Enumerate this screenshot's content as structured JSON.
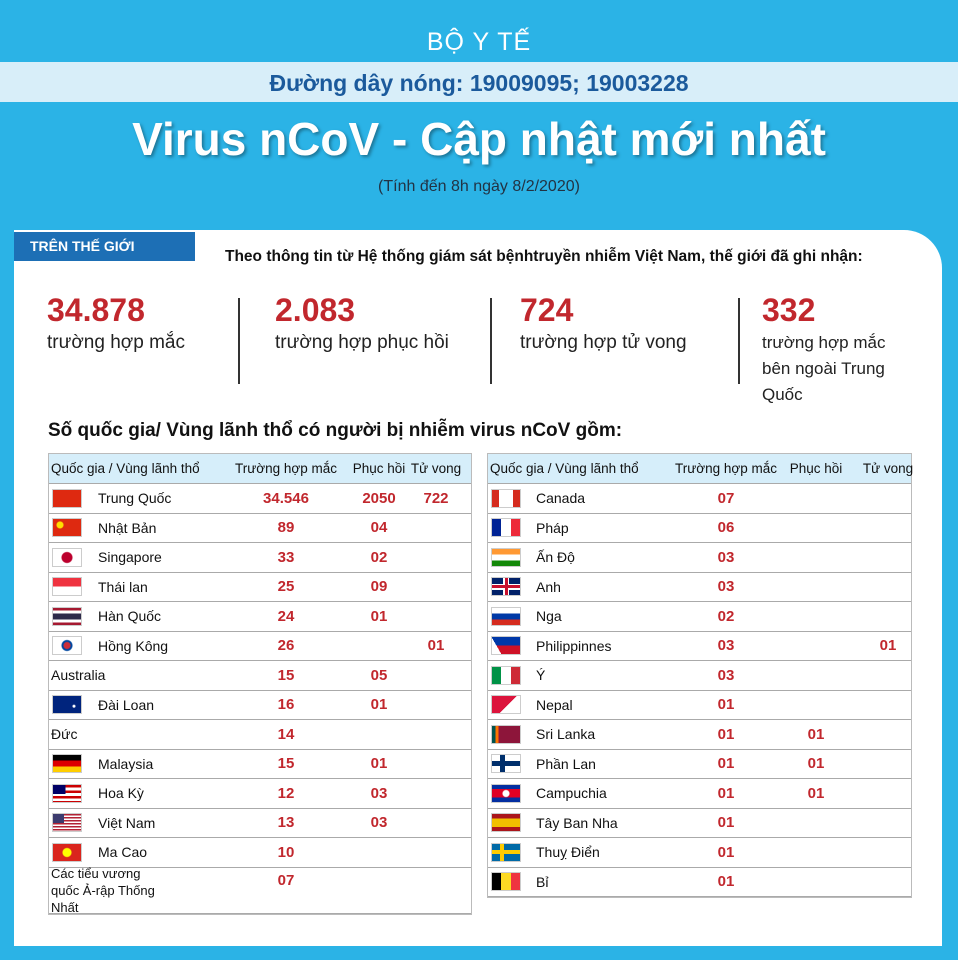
{
  "header": {
    "ministry": "BỘ Y TẾ",
    "hotline": "Đường dây nóng: 19009095; 19003228",
    "title": "Virus nCoV - Cập nhật mới nhất",
    "subtitle": "(Tính đến 8h ngày 8/2/2020)"
  },
  "world": {
    "tag": "TRÊN THẾ GIỚI",
    "intro": "Theo thông tin từ Hệ thống giám sát bệnhtruyền nhiễm Việt Nam, thế giới đã ghi nhận:",
    "stats": [
      {
        "value": "34.878",
        "label": "trường hợp mắc"
      },
      {
        "value": "2.083",
        "label": "trường hợp phục hồi"
      },
      {
        "value": "724",
        "label": "trường hợp tử vong"
      },
      {
        "value": "332",
        "label": "trường hợp mắc bên ngoài Trung Quốc"
      }
    ]
  },
  "countries": {
    "heading": "Số quốc gia/ Vùng lãnh thổ có người bị nhiễm virus nCoV gồm:",
    "tables": [
      {
        "header": [
          "Quốc gia / Vùng lãnh thổ",
          "Trường hợp mắc",
          "Phục hồi",
          "Tử vong"
        ],
        "rows": [
          [
            "Trung Quốc",
            "34.546",
            "2050",
            "722"
          ],
          [
            "Nhật Bản",
            "89",
            "04",
            null
          ],
          [
            "Singapore",
            "33",
            "02",
            null
          ],
          [
            "Thái lan",
            "25",
            "09",
            null
          ],
          [
            "Hàn Quốc",
            "24",
            "01",
            null
          ],
          [
            "Hồng Kông",
            "26",
            null,
            "01"
          ],
          [
            "Australia",
            "15",
            "05",
            null
          ],
          [
            "Đài Loan",
            "16",
            "01",
            null
          ],
          [
            "Đức",
            "14",
            null,
            null
          ],
          [
            "Malaysia",
            "15",
            "01",
            null
          ],
          [
            "Hoa Kỳ",
            "12",
            "03",
            null
          ],
          [
            "Việt Nam",
            "13",
            "03",
            null
          ],
          [
            "Ma Cao",
            "10",
            null,
            null
          ],
          [
            "Các tiểu vương quốc Ả-rập Thống Nhất",
            "07",
            null,
            null
          ]
        ]
      },
      {
        "header": [
          "Quốc gia / Vùng lãnh thổ",
          "Trường hợp mắc",
          "Phục hồi",
          "Tử vong"
        ],
        "rows": [
          [
            "Canada",
            "07",
            null,
            null
          ],
          [
            "Pháp",
            "06",
            null,
            null
          ],
          [
            "Ấn Độ",
            "03",
            null,
            null
          ],
          [
            "Anh",
            "03",
            null,
            null
          ],
          [
            "Nga",
            "02",
            null,
            null
          ],
          [
            "Philippinnes",
            "03",
            null,
            "01"
          ],
          [
            "Ý",
            "03",
            null,
            null
          ],
          [
            "Nepal",
            "01",
            null,
            null
          ],
          [
            "Sri Lanka",
            "01",
            "01",
            null
          ],
          [
            "Phần Lan",
            "01",
            "01",
            null
          ],
          [
            "Campuchia",
            "01",
            "01",
            null
          ],
          [
            "Tây Ban Nha",
            "01",
            null,
            null
          ],
          [
            "Thuỵ Điển",
            "01",
            null,
            null
          ],
          [
            "Bỉ",
            "01",
            null,
            null
          ]
        ]
      }
    ]
  }
}
